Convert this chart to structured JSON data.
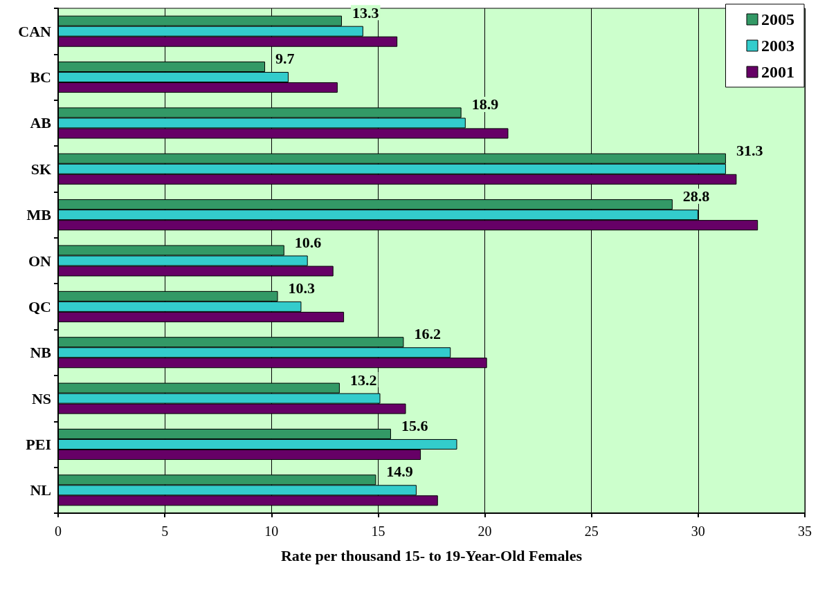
{
  "chart_data": {
    "type": "bar",
    "orientation": "horizontal",
    "xlabel": "Rate per thousand 15- to 19-Year-Old Females",
    "categories": [
      "CAN",
      "BC",
      "AB",
      "SK",
      "MB",
      "ON",
      "QC",
      "NB",
      "NS",
      "PEI",
      "NL"
    ],
    "series": [
      {
        "name": "2005",
        "color": "#339966",
        "values": [
          13.3,
          9.7,
          18.9,
          31.3,
          28.8,
          10.6,
          10.3,
          16.2,
          13.2,
          15.6,
          14.9
        ],
        "value_labels": [
          "13.3",
          "9.7",
          "18.9",
          "31.3",
          "28.8",
          "10.6",
          "10.3",
          "16.2",
          "13.2",
          "15.6",
          "14.9"
        ]
      },
      {
        "name": "2003",
        "color": "#33cccc",
        "values": [
          14.3,
          10.8,
          19.1,
          31.3,
          30.0,
          11.7,
          11.4,
          18.4,
          15.1,
          18.7,
          16.8
        ]
      },
      {
        "name": "2001",
        "color": "#660066",
        "values": [
          15.9,
          13.1,
          21.1,
          31.8,
          32.8,
          12.9,
          13.4,
          20.1,
          16.3,
          17.0,
          17.8
        ]
      }
    ],
    "xlim": [
      0,
      35
    ],
    "xticks": [
      0,
      5,
      10,
      15,
      20,
      25,
      30,
      35
    ],
    "grid": "x",
    "legend": "top right"
  }
}
